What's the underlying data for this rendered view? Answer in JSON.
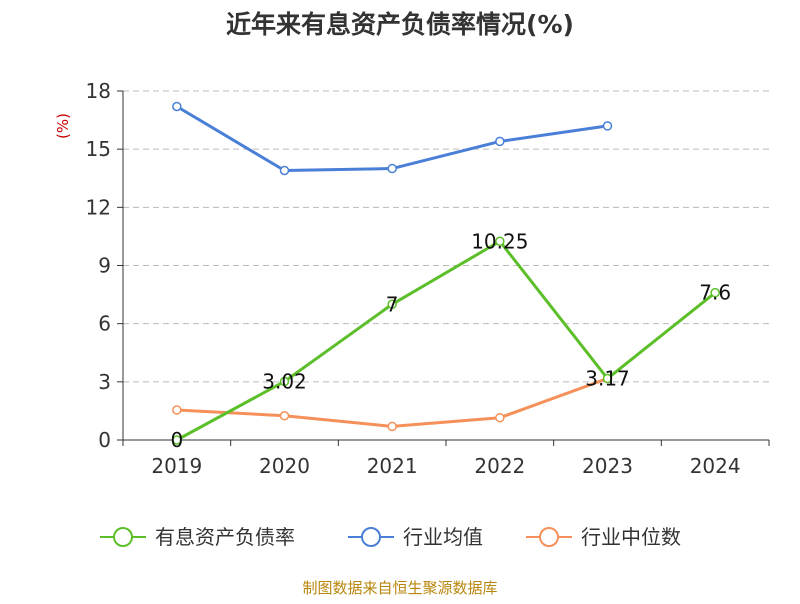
{
  "title": "近年来有息资产负债率情况(%)",
  "unit_label": "(%)",
  "source": "制图数据来自恒生聚源数据库",
  "chart_data": {
    "type": "line",
    "title": "近年来有息资产负债率情况(%)",
    "ylabel": "(%)",
    "xlabel": "",
    "categories": [
      "2019",
      "2020",
      "2021",
      "2022",
      "2023",
      "2024"
    ],
    "yticks": [
      "0",
      "3",
      "6",
      "9",
      "12",
      "15",
      "18"
    ],
    "ylim": [
      0,
      18
    ],
    "grid": true,
    "legend_position": "bottom",
    "series": [
      {
        "name": "有息资产负债率",
        "color": "#5cbf2a",
        "values": [
          0,
          3.02,
          7,
          10.25,
          3.17,
          7.6
        ],
        "labels": [
          "0",
          "3.02",
          "7",
          "10.25",
          "3.17",
          "7.6"
        ]
      },
      {
        "name": "行业均值",
        "color": "#4a7fd8",
        "values": [
          17.2,
          13.9,
          14.0,
          15.4,
          16.2,
          null
        ]
      },
      {
        "name": "行业中位数",
        "color": "#f5905a",
        "values": [
          1.55,
          1.25,
          0.7,
          1.15,
          3.17,
          null
        ]
      }
    ]
  }
}
